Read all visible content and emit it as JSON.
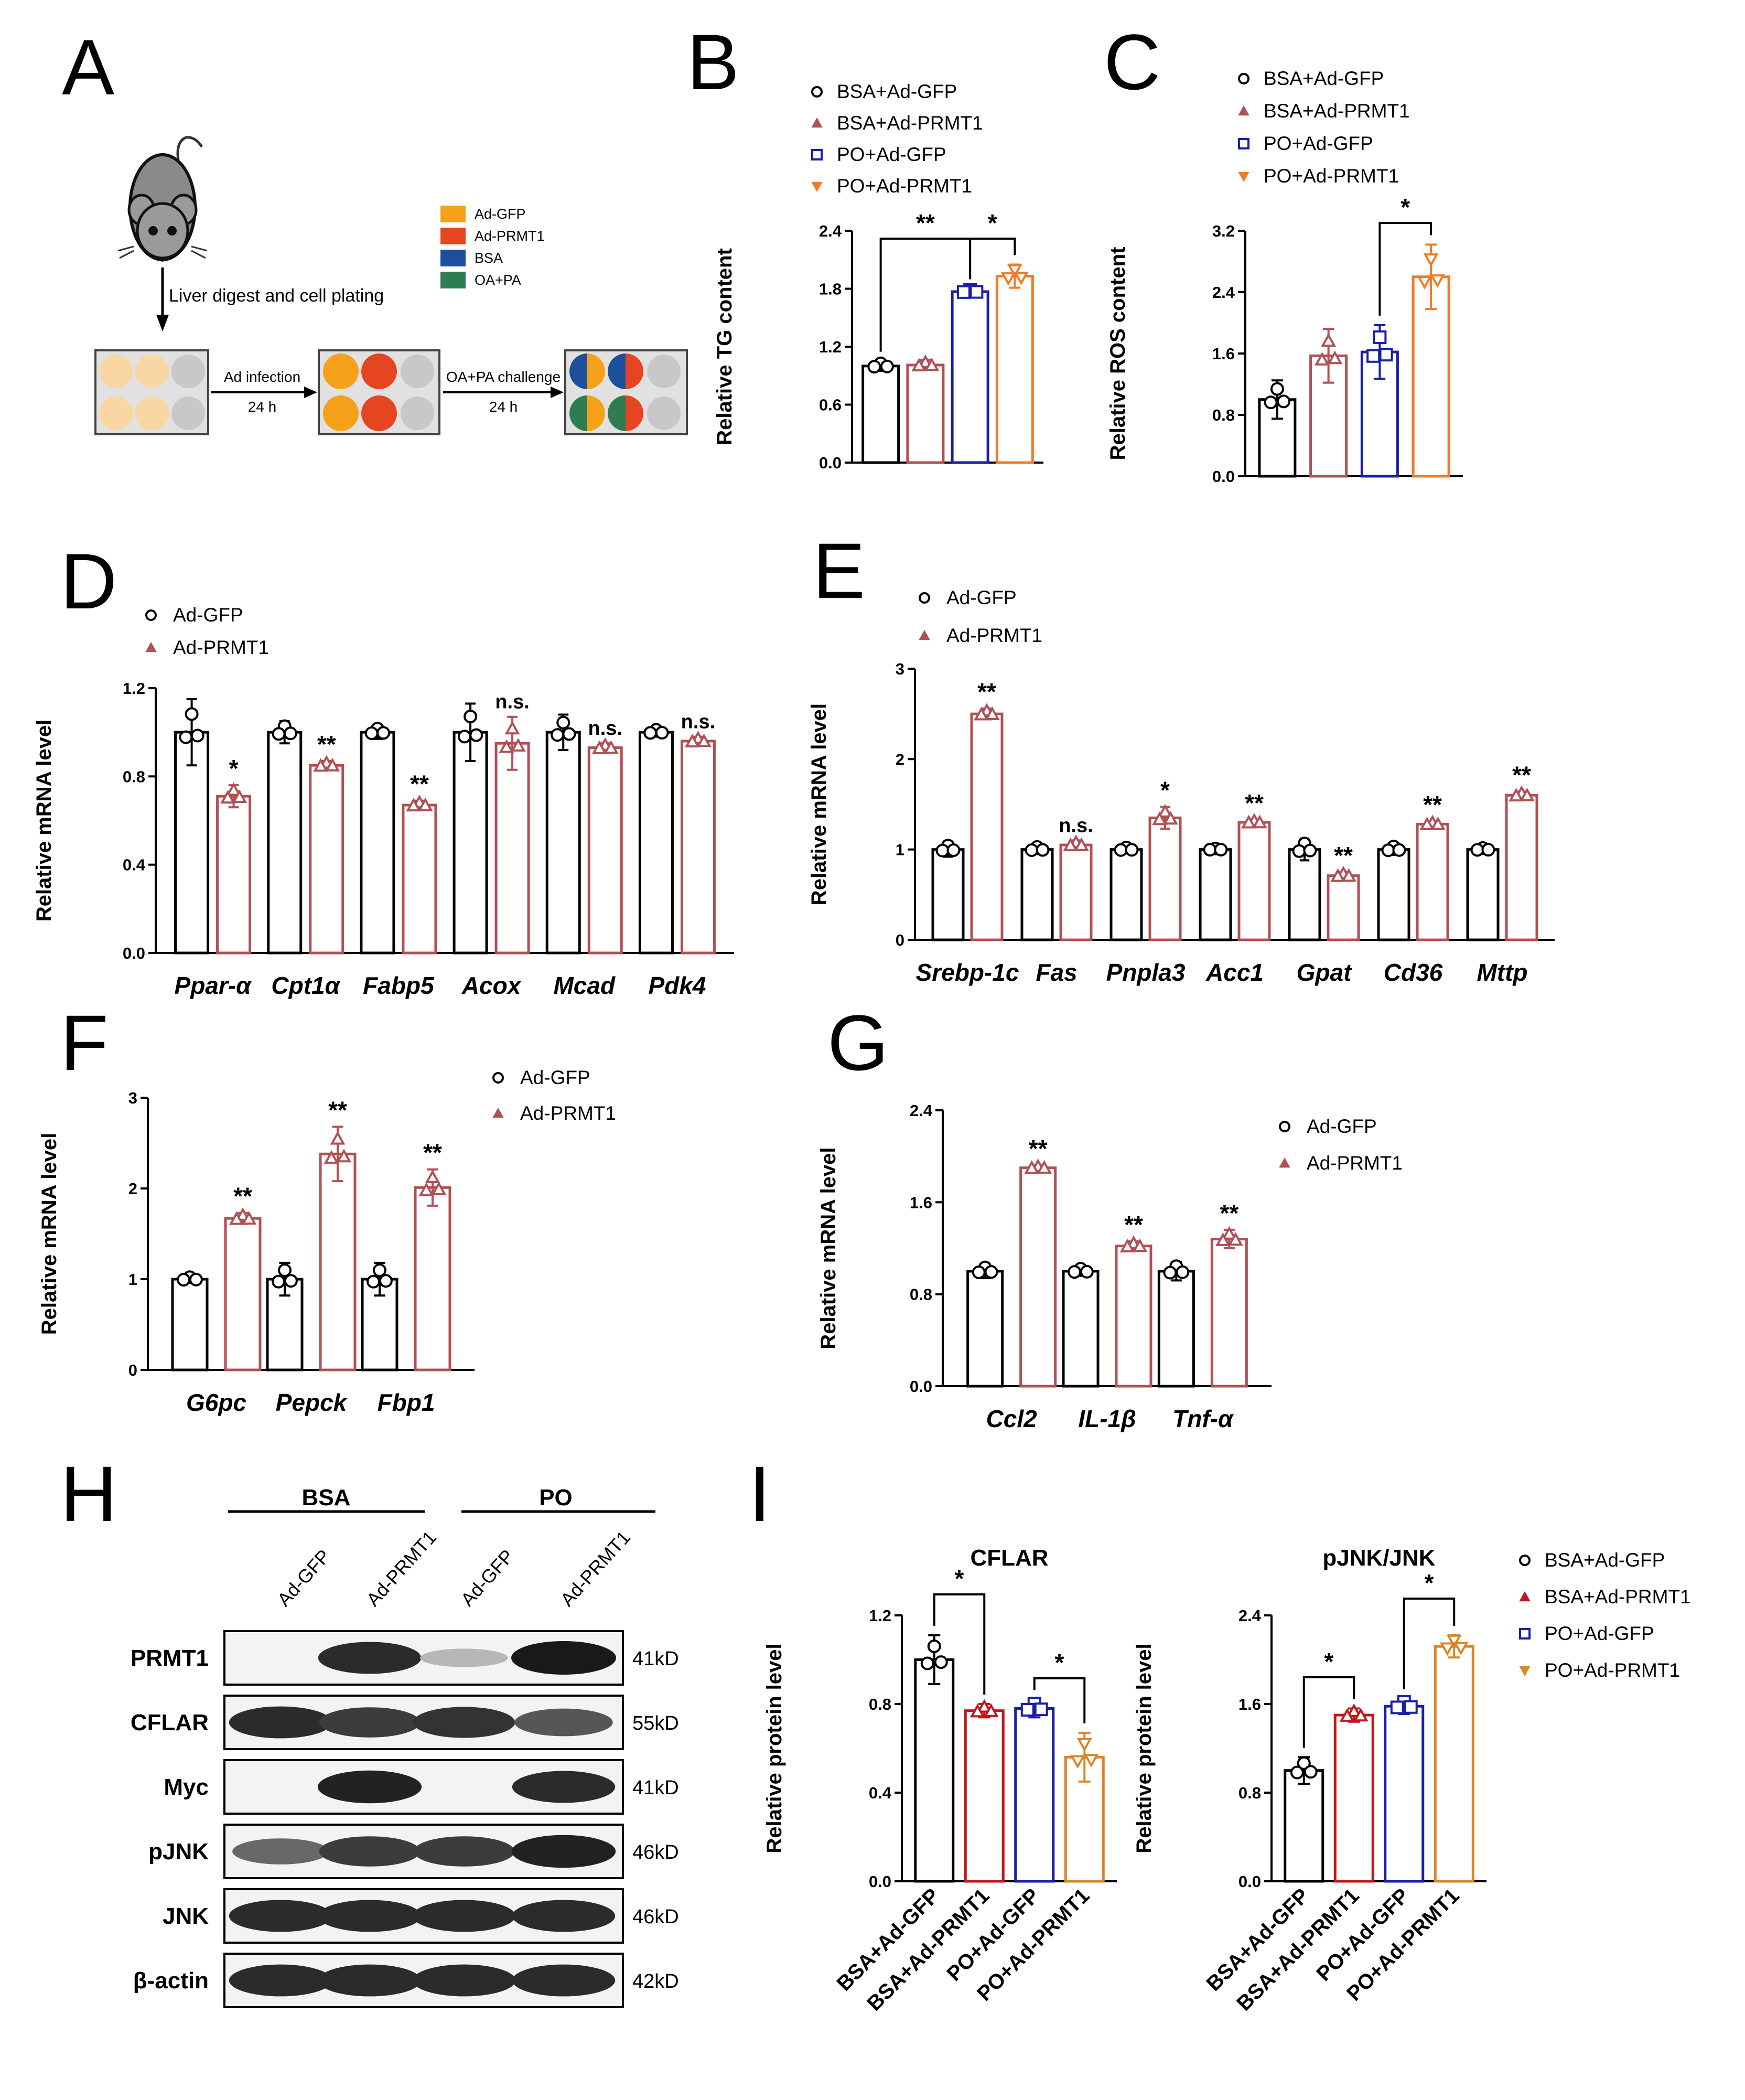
{
  "panel_letters": {
    "A": "A",
    "B": "B",
    "C": "C",
    "D": "D",
    "E": "E",
    "F": "F",
    "G": "G",
    "H": "H",
    "I": "I"
  },
  "colors": {
    "gfp": "#000000",
    "prmt1": "#b05054",
    "bsa_prmt1": "#c0171f",
    "po_gfp": "#1a20a6",
    "po_prmt1": "#f27b24",
    "po_prmt1_i": "#d9862a"
  },
  "schematic": {
    "step1": "Liver digest and cell plating",
    "step2_top": "Ad infection",
    "step2_bottom": "24 h",
    "step3_top": "OA+PA challenge",
    "step3_bottom": "24 h",
    "legend": [
      {
        "label": "Ad-GFP",
        "color": "#f5a21a"
      },
      {
        "label": "Ad-PRMT1",
        "color": "#e54520"
      },
      {
        "label": "BSA",
        "color": "#1d4f9c"
      },
      {
        "label": "OA+PA",
        "color": "#2e7d52"
      }
    ]
  },
  "chart_data": [
    {
      "id": "B",
      "type": "bar",
      "ylabel": "Relative TG content",
      "ylim": [
        0,
        2.4
      ],
      "yticks": [
        "0.0",
        "0.6",
        "1.2",
        "1.8",
        "2.4"
      ],
      "categories": [
        "BSA+Ad-GFP",
        "BSA+Ad-PRMT1",
        "PO+Ad-GFP",
        "PO+Ad-PRMT1"
      ],
      "values": [
        1.0,
        1.01,
        1.77,
        1.93
      ],
      "errors": [
        0.05,
        0.05,
        0.03,
        0.12
      ],
      "legend": [
        "BSA+Ad-GFP",
        "BSA+Ad-PRMT1",
        "PO+Ad-GFP",
        "PO+Ad-PRMT1"
      ],
      "annotations": [
        {
          "text": "**",
          "from": 0,
          "to": 2
        },
        {
          "text": "*",
          "from": 2,
          "to": 3
        }
      ]
    },
    {
      "id": "C",
      "type": "bar",
      "ylabel": "Relative ROS content",
      "ylim": [
        0,
        3.2
      ],
      "yticks": [
        "0.0",
        "0.8",
        "1.6",
        "2.4",
        "3.2"
      ],
      "categories": [
        "BSA+Ad-GFP",
        "BSA+Ad-PRMT1",
        "PO+Ad-GFP",
        "PO+Ad-PRMT1"
      ],
      "values": [
        1.0,
        1.57,
        1.62,
        2.6
      ],
      "errors": [
        0.25,
        0.35,
        0.35,
        0.42
      ],
      "legend": [
        "BSA+Ad-GFP",
        "BSA+Ad-PRMT1",
        "PO+Ad-GFP",
        "PO+Ad-PRMT1"
      ],
      "annotations": [
        {
          "text": "*",
          "from": 2,
          "to": 3
        }
      ]
    },
    {
      "id": "D",
      "type": "bar",
      "ylabel": "Relative mRNA level",
      "ylim": [
        0,
        1.2
      ],
      "yticks": [
        "0.0",
        "0.4",
        "0.8",
        "1.2"
      ],
      "categories": [
        "Ppar-α",
        "Cpt1α",
        "Fabp5",
        "Acox",
        "Mcad",
        "Pdk4"
      ],
      "series": [
        {
          "name": "Ad-GFP",
          "values": [
            1.0,
            1.0,
            1.0,
            1.0,
            1.0,
            1.0
          ],
          "errors": [
            0.15,
            0.05,
            0.03,
            0.13,
            0.08,
            0.02
          ]
        },
        {
          "name": "Ad-PRMT1",
          "values": [
            0.71,
            0.85,
            0.67,
            0.95,
            0.93,
            0.96
          ],
          "errors": [
            0.05,
            0.02,
            0.02,
            0.12,
            0.02,
            0.02
          ]
        }
      ],
      "sig": [
        "*",
        "**",
        "**",
        "n.s.",
        "n.s.",
        "n.s."
      ]
    },
    {
      "id": "E",
      "type": "bar",
      "ylabel": "Relative mRNA level",
      "ylim": [
        0,
        3
      ],
      "yticks": [
        "0",
        "1",
        "2",
        "3"
      ],
      "categories": [
        "Srebp-1c",
        "Fas",
        "Pnpla3",
        "Acc1",
        "Gpat",
        "Cd36",
        "Mttp"
      ],
      "series": [
        {
          "name": "Ad-GFP",
          "values": [
            1.0,
            1.0,
            1.0,
            1.0,
            1.0,
            1.0,
            1.0
          ],
          "errors": [
            0.08,
            0.05,
            0.04,
            0.02,
            0.12,
            0.06,
            0.03
          ]
        },
        {
          "name": "Ad-PRMT1",
          "values": [
            2.5,
            1.05,
            1.35,
            1.3,
            0.71,
            1.28,
            1.6
          ],
          "errors": [
            0.06,
            0.05,
            0.12,
            0.03,
            0.04,
            0.03,
            0.04
          ]
        }
      ],
      "sig": [
        "**",
        "n.s.",
        "*",
        "**",
        "**",
        "**",
        "**"
      ]
    },
    {
      "id": "F",
      "type": "bar",
      "ylabel": "Relative mRNA level",
      "ylim": [
        0,
        3
      ],
      "yticks": [
        "0",
        "1",
        "2",
        "3"
      ],
      "categories": [
        "G6pc",
        "Pepck",
        "Fbp1"
      ],
      "series": [
        {
          "name": "Ad-GFP",
          "values": [
            1.0,
            1.0,
            1.0
          ],
          "errors": [
            0.04,
            0.18,
            0.18
          ]
        },
        {
          "name": "Ad-PRMT1",
          "values": [
            1.67,
            2.38,
            2.01
          ],
          "errors": [
            0.06,
            0.3,
            0.2
          ]
        }
      ],
      "sig": [
        "**",
        "**",
        "**"
      ]
    },
    {
      "id": "G",
      "type": "bar",
      "ylabel": "Relative mRNA level",
      "ylim": [
        0,
        2.4
      ],
      "yticks": [
        "0.0",
        "0.8",
        "1.6",
        "2.4"
      ],
      "categories": [
        "Ccl2",
        "IL-1β",
        "Tnf-α"
      ],
      "series": [
        {
          "name": "Ad-GFP",
          "values": [
            1.0,
            1.0,
            1.0
          ],
          "errors": [
            0.06,
            0.04,
            0.08
          ]
        },
        {
          "name": "Ad-PRMT1",
          "values": [
            1.9,
            1.22,
            1.28
          ],
          "errors": [
            0.02,
            0.04,
            0.08
          ]
        }
      ],
      "sig": [
        "**",
        "**",
        "**"
      ]
    },
    {
      "id": "I1",
      "type": "bar",
      "title": "CFLAR",
      "ylabel": "Relative protein level",
      "ylim": [
        0,
        1.2
      ],
      "yticks": [
        "0.0",
        "0.4",
        "0.8",
        "1.2"
      ],
      "categories": [
        "BSA+Ad-GFP",
        "BSA+Ad-PRMT1",
        "PO+Ad-GFP",
        "PO+Ad-PRMT1"
      ],
      "values": [
        1.0,
        0.77,
        0.78,
        0.56
      ],
      "errors": [
        0.11,
        0.03,
        0.04,
        0.11
      ],
      "annotations": [
        {
          "text": "*",
          "from": 0,
          "to": 1
        },
        {
          "text": "*",
          "from": 2,
          "to": 3
        }
      ]
    },
    {
      "id": "I2",
      "type": "bar",
      "title": "pJNK/JNK",
      "ylabel": "Relative protein level",
      "ylim": [
        0,
        2.4
      ],
      "yticks": [
        "0.0",
        "0.8",
        "1.6",
        "2.4"
      ],
      "categories": [
        "BSA+Ad-GFP",
        "BSA+Ad-PRMT1",
        "PO+Ad-GFP",
        "PO+Ad-PRMT1"
      ],
      "values": [
        1.0,
        1.5,
        1.58,
        2.12
      ],
      "errors": [
        0.12,
        0.06,
        0.07,
        0.1
      ],
      "legend": [
        "BSA+Ad-GFP",
        "BSA+Ad-PRMT1",
        "PO+Ad-GFP",
        "PO+Ad-PRMT1"
      ],
      "annotations": [
        {
          "text": "*",
          "from": 0,
          "to": 1
        },
        {
          "text": "*",
          "from": 2,
          "to": 3
        }
      ]
    }
  ],
  "western": {
    "groups": [
      "BSA",
      "PO"
    ],
    "lanes": [
      "Ad-GFP",
      "Ad-PRMT1",
      "Ad-GFP",
      "Ad-PRMT1"
    ],
    "blots": [
      {
        "label": "PRMT1",
        "kd": "41kD",
        "intensity": [
          0.0,
          0.9,
          0.1,
          1.0
        ]
      },
      {
        "label": "CFLAR",
        "kd": "55kD",
        "intensity": [
          0.9,
          0.8,
          0.85,
          0.65
        ]
      },
      {
        "label": "Myc",
        "kd": "41kD",
        "intensity": [
          0.0,
          0.95,
          0.0,
          0.9
        ]
      },
      {
        "label": "pJNK",
        "kd": "46kD",
        "intensity": [
          0.55,
          0.8,
          0.8,
          0.95
        ]
      },
      {
        "label": "JNK",
        "kd": "46kD",
        "intensity": [
          0.9,
          0.9,
          0.9,
          0.9
        ]
      },
      {
        "label": "β-actin",
        "kd": "42kD",
        "intensity": [
          0.9,
          0.9,
          0.9,
          0.9
        ]
      }
    ]
  }
}
